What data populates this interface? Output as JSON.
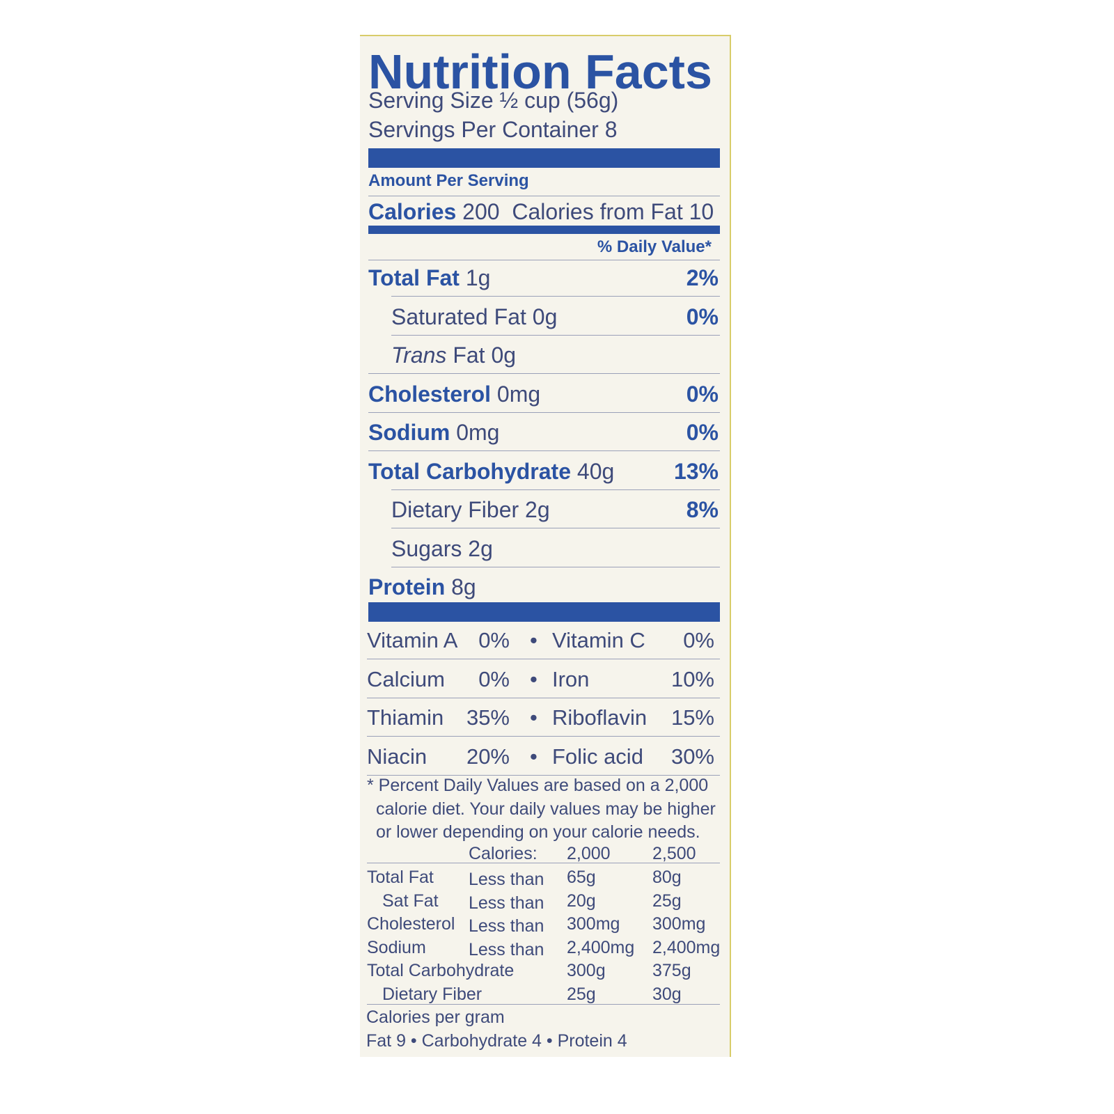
{
  "title": "Nutrition Facts",
  "serving_size": "Serving Size ½ cup (56g)",
  "servings_per_container": "Servings Per Container  8",
  "amount_per_serving": "Amount Per Serving",
  "calories": {
    "label": "Calories",
    "value": "200",
    "from_fat": "Calories from Fat 10"
  },
  "daily_value_header": "% Daily Value*",
  "nutrients": [
    {
      "label": "Total Fat",
      "amount": "1g",
      "dv": "2%"
    },
    {
      "label": "Saturated Fat",
      "amount": "0g",
      "dv": "0%"
    },
    {
      "label": "Trans",
      "amount": "Fat 0g",
      "dv": ""
    },
    {
      "label": "Cholesterol",
      "amount": "0mg",
      "dv": "0%"
    },
    {
      "label": "Sodium",
      "amount": "0mg",
      "dv": "0%"
    },
    {
      "label": "Total Carbohydrate",
      "amount": "40g",
      "dv": "13%"
    },
    {
      "label": "Dietary Fiber",
      "amount": "2g",
      "dv": "8%"
    },
    {
      "label": "Sugars",
      "amount": "2g",
      "dv": ""
    },
    {
      "label": "Protein",
      "amount": "8g",
      "dv": ""
    }
  ],
  "vitamins": [
    {
      "a": "Vitamin A",
      "av": "0%",
      "b": "Vitamin C",
      "bv": "0%"
    },
    {
      "a": "Calcium",
      "av": "0%",
      "b": "Iron",
      "bv": "10%"
    },
    {
      "a": "Thiamin",
      "av": "35%",
      "b": "Riboflavin",
      "bv": "15%"
    },
    {
      "a": "Niacin",
      "av": "20%",
      "b": "Folic acid",
      "bv": "30%"
    }
  ],
  "bullet": "•",
  "footnote": [
    "* Percent Daily Values are based on a 2,000",
    "calorie diet. Your daily values may be higher",
    "or lower depending on your calorie needs."
  ],
  "footnote_table": {
    "header": [
      "Calories:",
      "2,000",
      "2,500"
    ],
    "rows": [
      [
        "Total Fat",
        "Less than",
        "65g",
        "80g"
      ],
      [
        "Sat Fat",
        "Less than",
        "20g",
        "25g"
      ],
      [
        "Cholesterol",
        "Less than",
        "300mg",
        "300mg"
      ],
      [
        "Sodium",
        "Less than",
        "2,400mg",
        "2,400mg"
      ],
      [
        "Total Carbohydrate",
        "",
        "300g",
        "375g"
      ],
      [
        "Dietary Fiber",
        "",
        "25g",
        "30g"
      ]
    ]
  },
  "calories_per_gram": "Calories per gram",
  "calories_per_gram_values": "Fat 9 • Carbohydrate 4 • Protein 4",
  "colors": {
    "title_blue": "#2b53a3",
    "text": "#3e4a7a",
    "background": "#f6f4ec"
  }
}
